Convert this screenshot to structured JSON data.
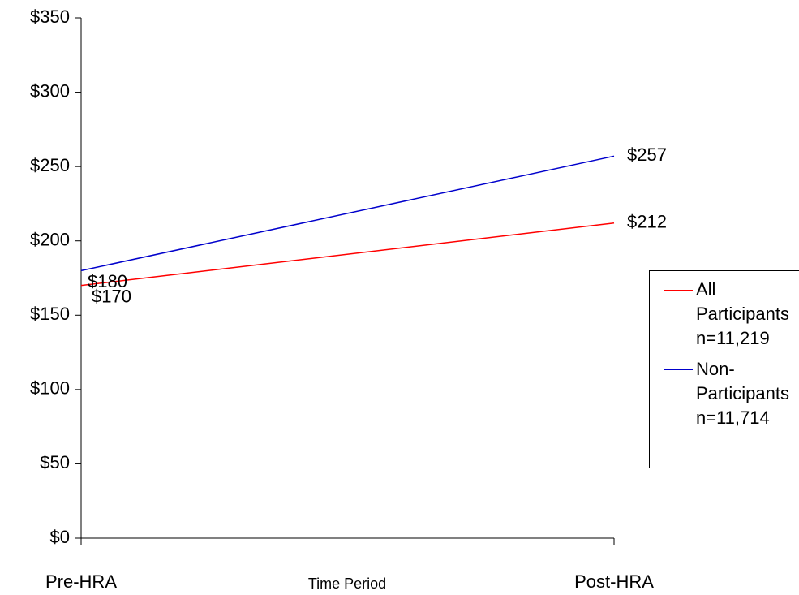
{
  "chart_data": {
    "type": "line",
    "x_label": "Time Period",
    "categories": [
      "Pre-HRA",
      "Post-HRA"
    ],
    "series": [
      {
        "name": "All Participants n=11,219",
        "color": "#ff0000",
        "values": [
          170,
          212
        ],
        "value_labels": [
          "$170",
          "$212"
        ]
      },
      {
        "name": "Non-Participants n=11,714",
        "color": "#0000cc",
        "values": [
          180,
          257
        ],
        "value_labels": [
          "$180",
          "$257"
        ]
      }
    ],
    "ylim": [
      0,
      350
    ],
    "yticks": [
      {
        "value": 0,
        "label": "$0"
      },
      {
        "value": 50,
        "label": "$50"
      },
      {
        "value": 100,
        "label": "$100"
      },
      {
        "value": 150,
        "label": "$150"
      },
      {
        "value": 200,
        "label": "$200"
      },
      {
        "value": 250,
        "label": "$250"
      },
      {
        "value": 300,
        "label": "$300"
      },
      {
        "value": 350,
        "label": "$350"
      }
    ],
    "legend": "right"
  }
}
